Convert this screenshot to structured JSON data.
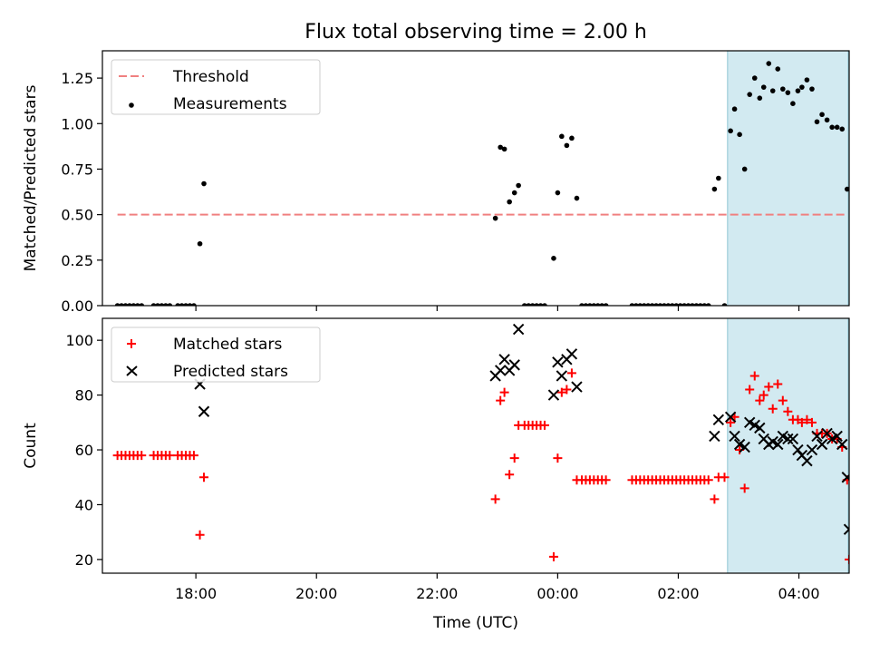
{
  "title": "Flux total observing time = 2.00 h",
  "xlabel": "Time (UTC)",
  "colors": {
    "threshold": "#f08080",
    "measurement": "#000000",
    "matched": "#ff0000",
    "predicted": "#000000",
    "highlight": "#add8e6"
  },
  "chart_data": [
    {
      "type": "scatter",
      "ylabel": "Matched/Predicted stars",
      "xlim": [
        "16:27",
        "04:50"
      ],
      "ylim": [
        0,
        1.4
      ],
      "x_ticks": [
        "18:00",
        "20:00",
        "22:00",
        "00:00",
        "02:00",
        "04:00"
      ],
      "y_ticks": [
        "0.00",
        "0.25",
        "0.50",
        "0.75",
        "1.00",
        "1.25"
      ],
      "highlight_span": [
        "02:49",
        "04:49"
      ],
      "legend_position": "upper-left",
      "legend": [
        "Threshold",
        "Measurements"
      ],
      "threshold": {
        "name": "Threshold",
        "value": 0.5,
        "x": [
          "16:42",
          "04:48"
        ],
        "style": "dashed"
      },
      "series": [
        {
          "name": "Measurements",
          "points": [
            [
              "16:42",
              0
            ],
            [
              "16:46",
              0
            ],
            [
              "16:50",
              0
            ],
            [
              "16:54",
              0
            ],
            [
              "16:58",
              0
            ],
            [
              "17:02",
              0
            ],
            [
              "17:06",
              0
            ],
            [
              "17:18",
              0
            ],
            [
              "17:22",
              0
            ],
            [
              "17:26",
              0
            ],
            [
              "17:30",
              0
            ],
            [
              "17:34",
              0
            ],
            [
              "17:42",
              0
            ],
            [
              "17:46",
              0
            ],
            [
              "17:50",
              0
            ],
            [
              "17:54",
              0
            ],
            [
              "17:58",
              0
            ],
            [
              "18:04",
              0.34
            ],
            [
              "18:08",
              0.67
            ],
            [
              "22:58",
              0.48
            ],
            [
              "23:03",
              0.87
            ],
            [
              "23:07",
              0.86
            ],
            [
              "23:12",
              0.57
            ],
            [
              "23:17",
              0.62
            ],
            [
              "23:21",
              0.66
            ],
            [
              "23:27",
              0
            ],
            [
              "23:31",
              0
            ],
            [
              "23:35",
              0
            ],
            [
              "23:39",
              0
            ],
            [
              "23:43",
              0
            ],
            [
              "23:47",
              0
            ],
            [
              "23:56",
              0.26
            ],
            [
              "00:00",
              0.62
            ],
            [
              "00:04",
              0.93
            ],
            [
              "00:09",
              0.88
            ],
            [
              "00:14",
              0.92
            ],
            [
              "00:19",
              0.59
            ],
            [
              "00:24",
              0
            ],
            [
              "00:28",
              0
            ],
            [
              "00:32",
              0
            ],
            [
              "00:36",
              0
            ],
            [
              "00:40",
              0
            ],
            [
              "00:44",
              0
            ],
            [
              "00:48",
              0
            ],
            [
              "01:14",
              0
            ],
            [
              "01:18",
              0
            ],
            [
              "01:22",
              0
            ],
            [
              "01:26",
              0
            ],
            [
              "01:30",
              0
            ],
            [
              "01:34",
              0
            ],
            [
              "01:38",
              0
            ],
            [
              "01:42",
              0
            ],
            [
              "01:46",
              0
            ],
            [
              "01:50",
              0
            ],
            [
              "01:54",
              0
            ],
            [
              "01:58",
              0
            ],
            [
              "02:02",
              0
            ],
            [
              "02:06",
              0
            ],
            [
              "02:10",
              0
            ],
            [
              "02:14",
              0
            ],
            [
              "02:18",
              0
            ],
            [
              "02:22",
              0
            ],
            [
              "02:26",
              0
            ],
            [
              "02:30",
              0
            ],
            [
              "02:36",
              0.64
            ],
            [
              "02:40",
              0.7
            ],
            [
              "02:46",
              0
            ],
            [
              "02:52",
              0.96
            ],
            [
              "02:56",
              1.08
            ],
            [
              "03:01",
              0.94
            ],
            [
              "03:06",
              0.75
            ],
            [
              "03:11",
              1.16
            ],
            [
              "03:16",
              1.25
            ],
            [
              "03:21",
              1.14
            ],
            [
              "03:25",
              1.2
            ],
            [
              "03:30",
              1.33
            ],
            [
              "03:34",
              1.18
            ],
            [
              "03:39",
              1.3
            ],
            [
              "03:44",
              1.19
            ],
            [
              "03:49",
              1.17
            ],
            [
              "03:54",
              1.11
            ],
            [
              "03:59",
              1.18
            ],
            [
              "04:03",
              1.2
            ],
            [
              "04:08",
              1.24
            ],
            [
              "04:13",
              1.19
            ],
            [
              "04:18",
              1.01
            ],
            [
              "04:23",
              1.05
            ],
            [
              "04:28",
              1.02
            ],
            [
              "04:33",
              0.98
            ],
            [
              "04:38",
              0.98
            ],
            [
              "04:43",
              0.97
            ],
            [
              "04:48",
              0.64
            ]
          ]
        }
      ]
    },
    {
      "type": "scatter",
      "ylabel": "Count",
      "xlim": [
        "16:27",
        "04:50"
      ],
      "ylim": [
        15,
        108
      ],
      "x_ticks": [
        "18:00",
        "20:00",
        "22:00",
        "00:00",
        "02:00",
        "04:00"
      ],
      "y_ticks": [
        "20",
        "40",
        "60",
        "80",
        "100"
      ],
      "highlight_span": [
        "02:49",
        "04:49"
      ],
      "legend_position": "upper-left",
      "legend": [
        "Matched stars",
        "Predicted stars"
      ],
      "series": [
        {
          "name": "Matched stars",
          "marker": "plus",
          "points": [
            [
              "16:42",
              58
            ],
            [
              "16:46",
              58
            ],
            [
              "16:50",
              58
            ],
            [
              "16:54",
              58
            ],
            [
              "16:58",
              58
            ],
            [
              "17:02",
              58
            ],
            [
              "17:06",
              58
            ],
            [
              "17:18",
              58
            ],
            [
              "17:22",
              58
            ],
            [
              "17:26",
              58
            ],
            [
              "17:30",
              58
            ],
            [
              "17:34",
              58
            ],
            [
              "17:42",
              58
            ],
            [
              "17:46",
              58
            ],
            [
              "17:50",
              58
            ],
            [
              "17:54",
              58
            ],
            [
              "17:58",
              58
            ],
            [
              "18:04",
              29
            ],
            [
              "18:08",
              50
            ],
            [
              "22:58",
              42
            ],
            [
              "23:03",
              78
            ],
            [
              "23:07",
              81
            ],
            [
              "23:12",
              51
            ],
            [
              "23:17",
              57
            ],
            [
              "23:21",
              69
            ],
            [
              "23:27",
              69
            ],
            [
              "23:31",
              69
            ],
            [
              "23:35",
              69
            ],
            [
              "23:39",
              69
            ],
            [
              "23:43",
              69
            ],
            [
              "23:47",
              69
            ],
            [
              "23:56",
              21
            ],
            [
              "00:00",
              57
            ],
            [
              "00:04",
              81
            ],
            [
              "00:09",
              82
            ],
            [
              "00:14",
              88
            ],
            [
              "00:19",
              49
            ],
            [
              "00:24",
              49
            ],
            [
              "00:28",
              49
            ],
            [
              "00:32",
              49
            ],
            [
              "00:36",
              49
            ],
            [
              "00:40",
              49
            ],
            [
              "00:44",
              49
            ],
            [
              "00:48",
              49
            ],
            [
              "01:14",
              49
            ],
            [
              "01:18",
              49
            ],
            [
              "01:22",
              49
            ],
            [
              "01:26",
              49
            ],
            [
              "01:30",
              49
            ],
            [
              "01:34",
              49
            ],
            [
              "01:38",
              49
            ],
            [
              "01:42",
              49
            ],
            [
              "01:46",
              49
            ],
            [
              "01:50",
              49
            ],
            [
              "01:54",
              49
            ],
            [
              "01:58",
              49
            ],
            [
              "02:02",
              49
            ],
            [
              "02:06",
              49
            ],
            [
              "02:10",
              49
            ],
            [
              "02:14",
              49
            ],
            [
              "02:18",
              49
            ],
            [
              "02:22",
              49
            ],
            [
              "02:26",
              49
            ],
            [
              "02:30",
              49
            ],
            [
              "02:36",
              42
            ],
            [
              "02:40",
              50
            ],
            [
              "02:46",
              50
            ],
            [
              "02:52",
              70
            ],
            [
              "02:56",
              72
            ],
            [
              "03:01",
              60
            ],
            [
              "03:06",
              46
            ],
            [
              "03:11",
              82
            ],
            [
              "03:16",
              87
            ],
            [
              "03:21",
              78
            ],
            [
              "03:25",
              80
            ],
            [
              "03:30",
              83
            ],
            [
              "03:34",
              75
            ],
            [
              "03:39",
              84
            ],
            [
              "03:44",
              78
            ],
            [
              "03:49",
              74
            ],
            [
              "03:54",
              71
            ],
            [
              "03:59",
              71
            ],
            [
              "04:03",
              70
            ],
            [
              "04:08",
              71
            ],
            [
              "04:13",
              70
            ],
            [
              "04:18",
              66
            ],
            [
              "04:23",
              66
            ],
            [
              "04:28",
              66
            ],
            [
              "04:33",
              64
            ],
            [
              "04:38",
              64
            ],
            [
              "04:43",
              61
            ],
            [
              "04:48",
              49
            ],
            [
              "04:50",
              20
            ]
          ]
        },
        {
          "name": "Predicted stars",
          "marker": "x",
          "points": [
            [
              "18:04",
              84
            ],
            [
              "18:08",
              74
            ],
            [
              "22:58",
              87
            ],
            [
              "23:03",
              89
            ],
            [
              "23:07",
              93
            ],
            [
              "23:12",
              89
            ],
            [
              "23:17",
              91
            ],
            [
              "23:21",
              104
            ],
            [
              "23:56",
              80
            ],
            [
              "00:00",
              92
            ],
            [
              "00:04",
              87
            ],
            [
              "00:09",
              93
            ],
            [
              "00:14",
              95
            ],
            [
              "00:19",
              83
            ],
            [
              "02:36",
              65
            ],
            [
              "02:40",
              71
            ],
            [
              "02:52",
              72
            ],
            [
              "02:56",
              65
            ],
            [
              "03:01",
              62
            ],
            [
              "03:06",
              61
            ],
            [
              "03:11",
              70
            ],
            [
              "03:16",
              69
            ],
            [
              "03:21",
              68
            ],
            [
              "03:25",
              64
            ],
            [
              "03:30",
              62
            ],
            [
              "03:34",
              63
            ],
            [
              "03:39",
              62
            ],
            [
              "03:44",
              65
            ],
            [
              "03:49",
              64
            ],
            [
              "03:54",
              64
            ],
            [
              "03:59",
              60
            ],
            [
              "04:03",
              58
            ],
            [
              "04:08",
              56
            ],
            [
              "04:13",
              60
            ],
            [
              "04:18",
              65
            ],
            [
              "04:23",
              62
            ],
            [
              "04:28",
              66
            ],
            [
              "04:33",
              64
            ],
            [
              "04:38",
              65
            ],
            [
              "04:43",
              62
            ],
            [
              "04:48",
              50
            ],
            [
              "04:50",
              31
            ]
          ]
        }
      ]
    }
  ]
}
